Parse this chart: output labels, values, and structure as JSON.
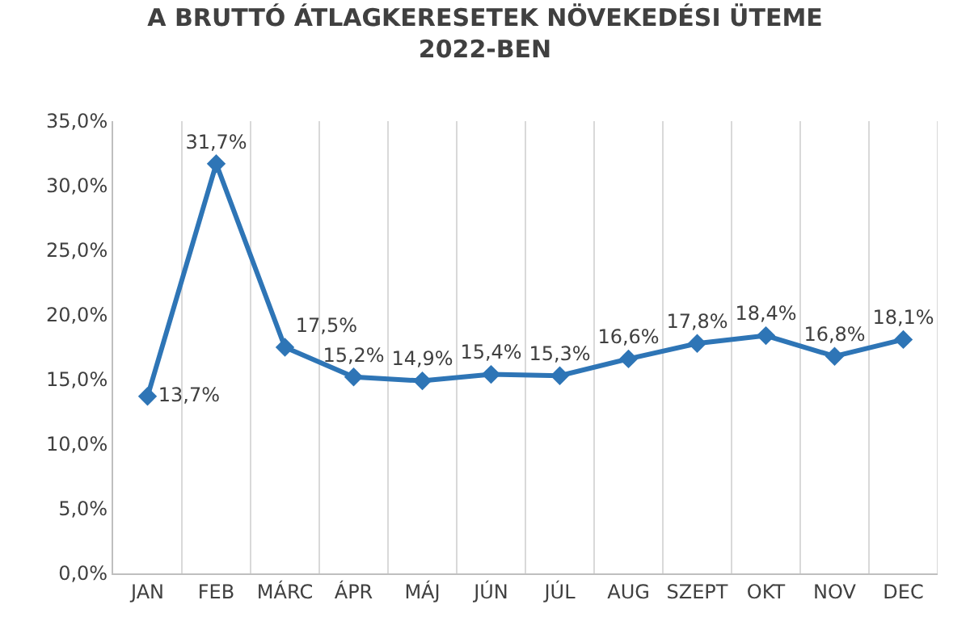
{
  "chart_data": {
    "type": "line",
    "title": "A BRUTTÓ ÁTLAGKERESETEK NÖVEKEDÉSI ÜTEME\n2022-BEN",
    "categories": [
      "JAN",
      "FEB",
      "MÁRC",
      "ÁPR",
      "MÁJ",
      "JÚN",
      "JÚL",
      "AUG",
      "SZEPT",
      "OKT",
      "NOV",
      "DEC"
    ],
    "series": [
      {
        "color": "#2e75b6",
        "values": [
          13.7,
          31.7,
          17.5,
          15.2,
          14.9,
          15.4,
          15.3,
          16.6,
          17.8,
          18.4,
          16.8,
          18.1
        ],
        "value_labels": [
          "13,7%",
          "31,7%",
          "17,5%",
          "15,2%",
          "14,9%",
          "15,4%",
          "15,3%",
          "16,6%",
          "17,8%",
          "18,4%",
          "16,8%",
          "18,1%"
        ]
      }
    ],
    "ylim": [
      0,
      35
    ],
    "yticks": [
      {
        "value": 0,
        "label": "0,0%"
      },
      {
        "value": 5,
        "label": "5,0%"
      },
      {
        "value": 10,
        "label": "10,0%"
      },
      {
        "value": 15,
        "label": "15,0%"
      },
      {
        "value": 20,
        "label": "20,0%"
      },
      {
        "value": 25,
        "label": "25,0%"
      },
      {
        "value": 30,
        "label": "30,0%"
      },
      {
        "value": 35,
        "label": "35,0%"
      }
    ],
    "grid": "x",
    "marker": "diamond",
    "line_style": "solid"
  }
}
